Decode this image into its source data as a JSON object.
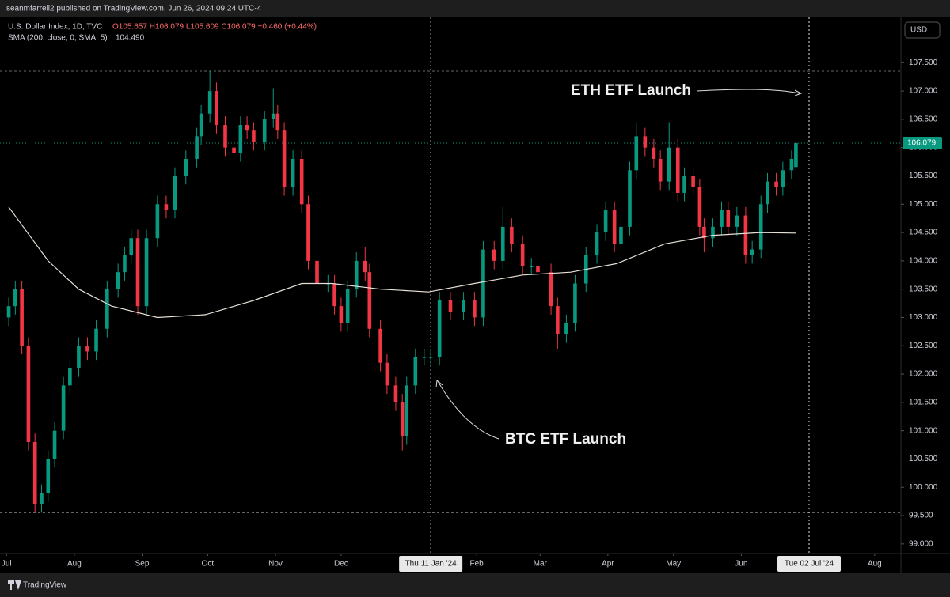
{
  "header": {
    "publisher": "seanmfarrell2 published on TradingView.com, Jun 26, 2024 09:24 UTC-4",
    "footer": "TradingView",
    "currency_button": "USD"
  },
  "chart_data": {
    "type": "candlestick",
    "title": "U.S. Dollar Index, 1D, TVC",
    "ohlc_label": "O105.657 H106.079 L105.609 C106.079 +0.460 (+0.44%)",
    "up_color": "#089981",
    "down_color": "#f23645",
    "candles": {
      "x": [
        1,
        4,
        7,
        10,
        13,
        16,
        19,
        22,
        26,
        29,
        33,
        37,
        41,
        46,
        51,
        54,
        57,
        60,
        64,
        69,
        73,
        77,
        82,
        87,
        89,
        93,
        96,
        100,
        104,
        107,
        110,
        113,
        118,
        122,
        124,
        127,
        131,
        135,
        138,
        142,
        147,
        150,
        153,
        156,
        160,
        164,
        166,
        171,
        174,
        178,
        181,
        183,
        187,
        191,
        194,
        198,
        203,
        209,
        214,
        218,
        223,
        227,
        231,
        236,
        240,
        243,
        249,
        252,
        256,
        260,
        265,
        270,
        274,
        278,
        281,
        285,
        288,
        292,
        296,
        299,
        303,
        307,
        310,
        314,
        317,
        319,
        323,
        327,
        330,
        334,
        338,
        341,
        345,
        348,
        352,
        355,
        359,
        361
      ],
      "open": [
        103.0,
        103.2,
        103.5,
        102.5,
        100.8,
        99.7,
        99.9,
        100.5,
        101.0,
        101.8,
        102.1,
        102.5,
        102.4,
        102.8,
        103.5,
        103.8,
        104.1,
        104.4,
        103.2,
        104.4,
        105.0,
        104.9,
        105.5,
        105.8,
        106.2,
        106.6,
        107.0,
        106.4,
        106.0,
        105.9,
        106.4,
        106.3,
        106.1,
        106.5,
        106.6,
        106.3,
        105.3,
        105.8,
        105.0,
        104.0,
        103.6,
        103.6,
        103.2,
        102.9,
        103.5,
        104.0,
        103.8,
        102.8,
        102.2,
        101.8,
        101.5,
        100.9,
        101.8,
        102.3,
        102.3,
        102.3,
        103.3,
        103.1,
        103.3,
        103.0,
        104.2,
        104.0,
        104.6,
        104.3,
        103.9,
        103.9,
        103.8,
        103.2,
        102.7,
        102.9,
        103.6,
        104.1,
        104.5,
        104.9,
        104.3,
        104.6,
        105.6,
        106.2,
        106.0,
        105.8,
        105.4,
        106.0,
        105.2,
        105.5,
        105.3,
        104.6,
        104.4,
        104.6,
        104.9,
        104.6,
        104.8,
        104.1,
        104.2,
        105.0,
        105.4,
        105.3,
        105.6,
        105.657
      ],
      "high": [
        103.35,
        103.65,
        103.65,
        102.65,
        100.95,
        100.05,
        100.65,
        101.15,
        101.95,
        102.25,
        102.65,
        102.65,
        102.95,
        103.65,
        103.95,
        104.25,
        104.55,
        104.55,
        104.55,
        105.15,
        105.15,
        105.65,
        105.95,
        106.35,
        106.75,
        107.35,
        107.15,
        106.55,
        106.15,
        106.55,
        106.55,
        106.45,
        106.65,
        107.05,
        106.75,
        106.45,
        105.95,
        105.95,
        105.15,
        104.15,
        103.75,
        103.75,
        103.35,
        103.65,
        104.15,
        104.25,
        103.95,
        102.95,
        102.35,
        101.95,
        101.65,
        101.95,
        102.45,
        102.45,
        102.45,
        103.45,
        103.45,
        103.45,
        103.45,
        104.35,
        104.35,
        104.95,
        104.75,
        104.45,
        104.05,
        104.05,
        103.95,
        103.35,
        103.05,
        103.75,
        104.25,
        104.65,
        105.05,
        105.05,
        104.75,
        105.75,
        106.45,
        106.35,
        106.15,
        105.95,
        106.45,
        106.15,
        105.65,
        105.65,
        105.45,
        104.75,
        104.75,
        105.05,
        105.05,
        104.95,
        104.95,
        104.35,
        105.15,
        105.55,
        105.55,
        105.75,
        105.95,
        106.079
      ],
      "low": [
        102.85,
        103.05,
        102.35,
        100.65,
        99.55,
        99.55,
        99.75,
        100.35,
        100.85,
        101.65,
        101.95,
        102.25,
        102.25,
        102.65,
        103.35,
        103.65,
        103.95,
        103.05,
        103.05,
        104.25,
        104.75,
        104.75,
        105.35,
        105.65,
        106.05,
        106.45,
        106.25,
        105.85,
        105.75,
        105.75,
        106.15,
        105.95,
        105.95,
        106.35,
        106.15,
        105.15,
        105.15,
        104.85,
        103.85,
        103.45,
        103.45,
        103.05,
        102.75,
        102.75,
        103.35,
        103.65,
        102.65,
        102.05,
        101.65,
        101.35,
        100.65,
        100.75,
        101.65,
        102.15,
        102.15,
        102.15,
        102.95,
        102.95,
        102.85,
        102.85,
        103.85,
        103.85,
        104.15,
        103.75,
        103.75,
        103.65,
        103.05,
        102.45,
        102.55,
        102.75,
        103.45,
        103.95,
        104.35,
        104.15,
        104.15,
        104.45,
        105.45,
        105.85,
        105.65,
        105.25,
        105.25,
        105.05,
        105.05,
        105.15,
        104.45,
        104.15,
        104.25,
        104.45,
        104.45,
        104.45,
        103.95,
        103.95,
        104.05,
        104.85,
        105.15,
        105.15,
        105.45,
        105.609
      ],
      "close": [
        103.2,
        103.5,
        102.5,
        100.8,
        99.7,
        99.9,
        100.5,
        101.0,
        101.8,
        102.1,
        102.5,
        102.4,
        102.8,
        103.5,
        103.8,
        104.1,
        104.4,
        103.2,
        104.4,
        105.0,
        104.9,
        105.5,
        105.8,
        106.2,
        106.6,
        107.0,
        106.4,
        106.0,
        105.9,
        106.4,
        106.3,
        106.1,
        106.5,
        106.6,
        106.3,
        105.3,
        105.8,
        105.0,
        104.0,
        103.6,
        103.6,
        103.2,
        102.9,
        103.5,
        104.0,
        103.8,
        102.8,
        102.2,
        101.8,
        101.5,
        100.9,
        101.8,
        102.3,
        102.3,
        102.3,
        103.3,
        103.1,
        103.3,
        103.0,
        104.2,
        104.0,
        104.6,
        104.3,
        103.9,
        103.9,
        103.8,
        103.2,
        102.7,
        102.9,
        103.6,
        104.1,
        104.5,
        104.9,
        104.3,
        104.6,
        105.6,
        106.2,
        106.0,
        105.8,
        105.4,
        106.0,
        105.2,
        105.5,
        105.3,
        104.6,
        104.4,
        104.6,
        104.9,
        104.6,
        104.8,
        104.1,
        104.2,
        105.0,
        105.4,
        105.3,
        105.6,
        105.8,
        106.079
      ]
    },
    "sma": {
      "name": "SMA (200, close, 0, SMA, 5)",
      "last_label": "104.490",
      "color": "#e6e0d6",
      "x": [
        1,
        19,
        33,
        48,
        69,
        91,
        113,
        135,
        149,
        171,
        193,
        214,
        236,
        258,
        279,
        301,
        323,
        345,
        361
      ],
      "values": [
        104.95,
        104.0,
        103.5,
        103.2,
        103.0,
        103.05,
        103.3,
        103.6,
        103.6,
        103.5,
        103.45,
        103.6,
        103.75,
        103.8,
        103.95,
        104.3,
        104.45,
        104.5,
        104.49
      ]
    },
    "range_lines": [
      107.35,
      99.55
    ],
    "event_lines": [
      {
        "value": 194,
        "label": "Thu 11 Jan '24"
      },
      {
        "value": 367,
        "label": "Tue 02 Jul '24"
      }
    ],
    "annotations": [
      "ETH ETF Launch",
      "BTC ETF Launch"
    ],
    "xlim": [
      -3,
      409
    ],
    "xticks": [
      {
        "value": 0,
        "label": "Jul"
      },
      {
        "value": 31,
        "label": "Aug"
      },
      {
        "value": 62,
        "label": "Sep"
      },
      {
        "value": 92,
        "label": "Oct"
      },
      {
        "value": 123,
        "label": "Nov"
      },
      {
        "value": 153,
        "label": "Dec"
      },
      {
        "value": 215,
        "label": "Feb"
      },
      {
        "value": 244,
        "label": "Mar"
      },
      {
        "value": 275,
        "label": "Apr"
      },
      {
        "value": 305,
        "label": "May"
      },
      {
        "value": 336,
        "label": "Jun"
      },
      {
        "value": 397,
        "label": "Aug"
      }
    ],
    "ylim": [
      98.83,
      108.3
    ],
    "yticks": [
      {
        "value": 99,
        "label": "99.000"
      },
      {
        "value": 99.5,
        "label": "99.500"
      },
      {
        "value": 100,
        "label": "100.000"
      },
      {
        "value": 100.5,
        "label": "100.500"
      },
      {
        "value": 101,
        "label": "101.000"
      },
      {
        "value": 101.5,
        "label": "101.500"
      },
      {
        "value": 102,
        "label": "102.000"
      },
      {
        "value": 102.5,
        "label": "102.500"
      },
      {
        "value": 103,
        "label": "103.000"
      },
      {
        "value": 103.5,
        "label": "103.500"
      },
      {
        "value": 104,
        "label": "104.000"
      },
      {
        "value": 104.5,
        "label": "104.500"
      },
      {
        "value": 105,
        "label": "105.000"
      },
      {
        "value": 105.5,
        "label": "105.500"
      },
      {
        "value": 106,
        "label": "106.000"
      },
      {
        "value": 106.5,
        "label": "106.500"
      },
      {
        "value": 107,
        "label": "107.000"
      },
      {
        "value": 107.5,
        "label": "107.500"
      }
    ],
    "grid": false
  }
}
